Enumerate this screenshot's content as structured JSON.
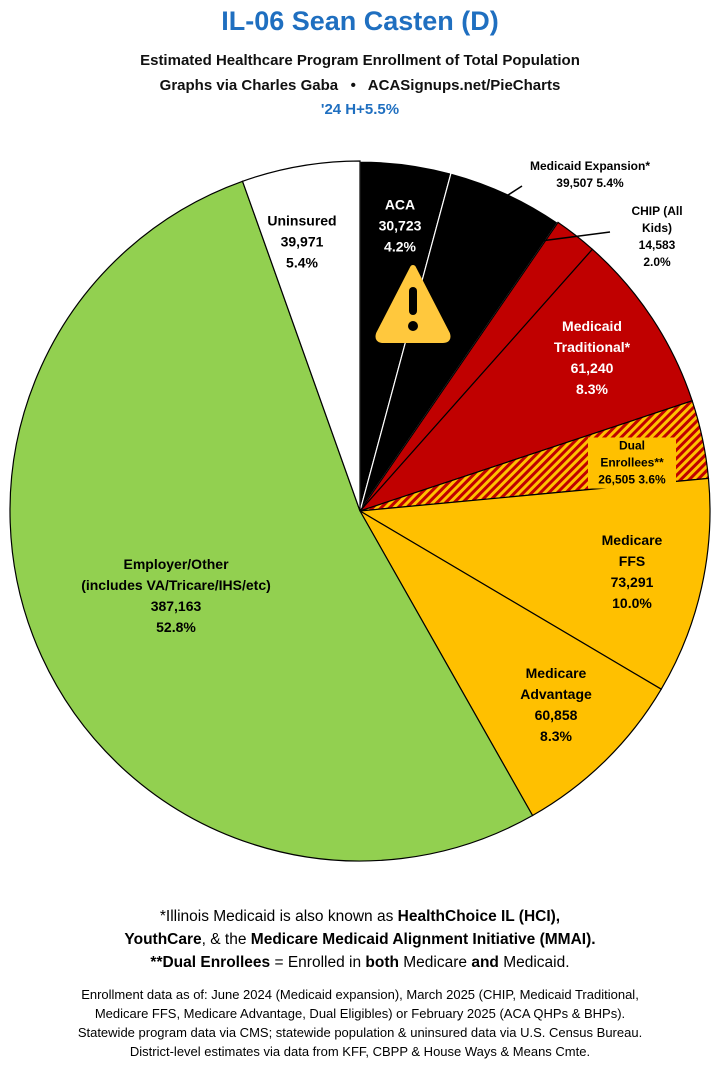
{
  "chart_data": {
    "type": "pie",
    "title": "IL-06 Sean Casten (D)",
    "subtitle": "Estimated Healthcare Program Enrollment of Total Population",
    "credit": "Graphs via Charles Gaba   •   ACASignups.net/PieCharts",
    "annotation": "'24 H+5.5%",
    "categories": [
      "ACA",
      "Medicaid Expansion*",
      "CHIP (All Kids)",
      "Medicaid\nTraditional*",
      "Dual Enrollees**",
      "Medicare FFS",
      "Medicare\nAdvantage",
      "Employer/Other\n(includes VA/Tricare/IHS/etc)",
      "Uninsured"
    ],
    "values": [
      30723,
      39507,
      14583,
      61240,
      26505,
      73291,
      60858,
      387163,
      39971
    ],
    "value_labels": [
      "30,723",
      "39,507",
      "14,583",
      "61,240",
      "26,505",
      "73,291",
      "60,858",
      "387,163",
      "39,971"
    ],
    "percents": [
      4.2,
      5.4,
      2.0,
      8.3,
      3.6,
      10.0,
      8.3,
      52.8,
      5.4
    ],
    "percent_labels": [
      "4.2%",
      "5.4%",
      "2.0%",
      "8.3%",
      "3.6%",
      "10.0%",
      "8.3%",
      "52.8%",
      "5.4%"
    ],
    "colors": [
      "#000000",
      "#000000",
      "#c00000",
      "#c00000",
      "#c00000",
      "#ffc000",
      "#ffc000",
      "#92d050",
      "#ffffff"
    ],
    "hatch_colors": [
      null,
      null,
      null,
      null,
      "#ffc000",
      null,
      null,
      null,
      null
    ]
  },
  "notes": [
    [
      {
        "text": "*Illinois Medicaid is also known as "
      },
      {
        "text": "HealthChoice IL (HCI),",
        "bold": true
      }
    ],
    [
      {
        "text": "YouthCare",
        "bold": true
      },
      {
        "text": ", & the "
      },
      {
        "text": "Medicare Medicaid Alignment Initiative (MMAI).",
        "bold": true
      }
    ],
    [
      {
        "text": "**Dual Enrollees",
        "bold": true
      },
      {
        "text": " = Enrolled in "
      },
      {
        "text": "both",
        "bold": true
      },
      {
        "text": " Medicare "
      },
      {
        "text": "and",
        "bold": true
      },
      {
        "text": " Medicaid."
      }
    ]
  ],
  "sources": [
    "Enrollment data as of: June 2024 (Medicaid expansion), March 2025 (CHIP, Medicaid Traditional,",
    "Medicare FFS, Medicare Advantage, Dual Eligibles) or February 2025 (ACA QHPs & BHPs).",
    "Statewide program data via CMS; statewide population & uninsured data via U.S. Census Bureau.",
    "District-level estimates via data from KFF, CBPP & House Ways & Means Cmte."
  ]
}
